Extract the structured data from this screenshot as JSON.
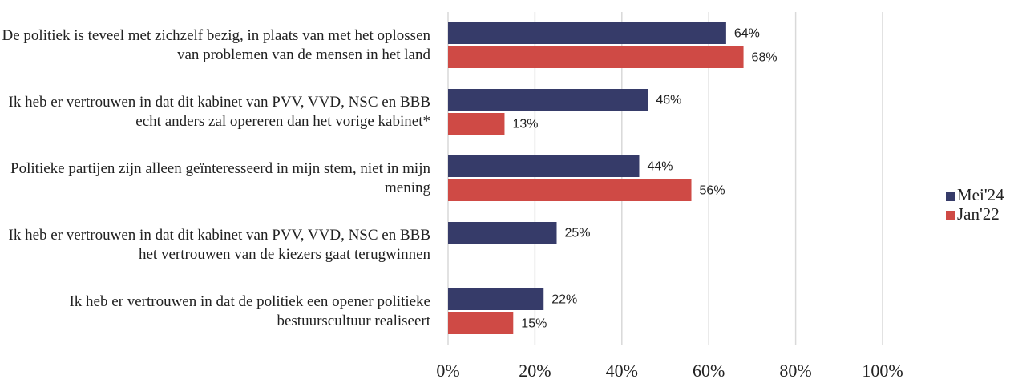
{
  "chart_data": {
    "type": "bar",
    "orientation": "horizontal",
    "categories": [
      "De politiek is teveel met zichzelf bezig, in plaats van met het oplossen van problemen van de mensen in het land",
      "Ik heb er vertrouwen in dat dit kabinet van PVV, VVD, NSC en BBB echt anders zal opereren dan het vorige kabinet*",
      "Politieke partijen zijn alleen geïnteresseerd in mijn stem, niet in mijn mening",
      "Ik heb er vertrouwen in dat dit kabinet van PVV, VVD, NSC en BBB het vertrouwen van de kiezers gaat terugwinnen",
      "Ik heb er vertrouwen in dat de politiek een opener politieke bestuurscultuur realiseert"
    ],
    "series": [
      {
        "name": "Mei'24",
        "color": "#363b69",
        "values": [
          64,
          46,
          44,
          25,
          22
        ],
        "value_labels": [
          "64%",
          "46%",
          "44%",
          "25%",
          "22%"
        ]
      },
      {
        "name": "Jan'22",
        "color": "#cf4a45",
        "values": [
          68,
          13,
          56,
          null,
          15
        ],
        "value_labels": [
          "68%",
          "13%",
          "56%",
          null,
          "15%"
        ]
      }
    ],
    "xlim": [
      0,
      100
    ],
    "xticks": [
      {
        "value": 0,
        "label": "0%"
      },
      {
        "value": 20,
        "label": "20%"
      },
      {
        "value": 40,
        "label": "40%"
      },
      {
        "value": 60,
        "label": "60%"
      },
      {
        "value": 80,
        "label": "80%"
      },
      {
        "value": 100,
        "label": "100%"
      }
    ],
    "grid": true,
    "legend": "right"
  }
}
